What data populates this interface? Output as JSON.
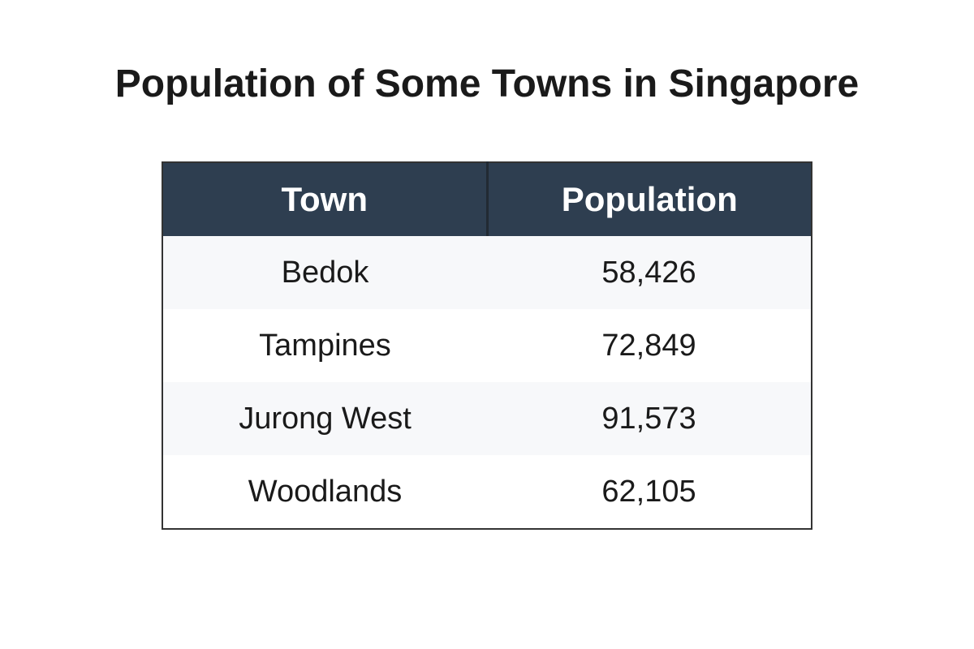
{
  "title": "Population of Some Towns in Singapore",
  "colors": {
    "header_background": "#2e3e50",
    "header_text": "#ffffff",
    "row_alt_background": "#f7f8fa",
    "border": "#333333"
  },
  "chart_data": {
    "type": "table",
    "title": "Population of Some Towns in Singapore",
    "columns": [
      "Town",
      "Population"
    ],
    "rows": [
      [
        "Bedok",
        "58,426"
      ],
      [
        "Tampines",
        "72,849"
      ],
      [
        "Jurong West",
        "91,573"
      ],
      [
        "Woodlands",
        "62,105"
      ]
    ]
  }
}
